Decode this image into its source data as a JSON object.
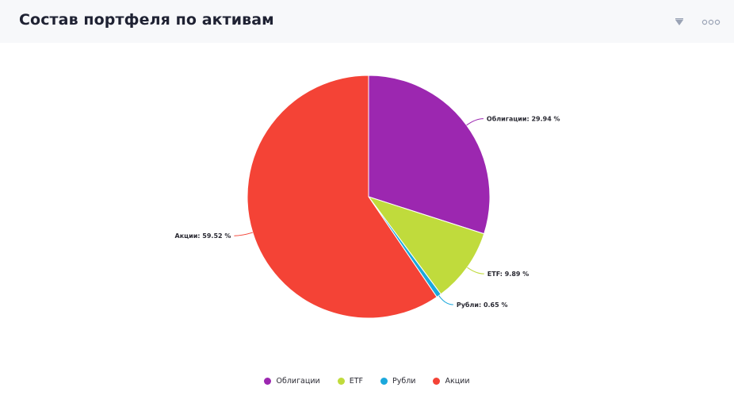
{
  "header": {
    "title": "Состав портфеля по активам",
    "filter_icon": "filter-icon",
    "more_icon": "more-dots-icon"
  },
  "colors": {
    "header_bg": "#f7f8fa",
    "icon": "#9aa3b5"
  },
  "chart_data": {
    "type": "pie",
    "title": "Состав портфеля по активам",
    "legend_position": "bottom",
    "slices": [
      {
        "name": "Облигации",
        "value": 29.94,
        "label": "Облигации: 29.94 %",
        "color": "#9c27b0"
      },
      {
        "name": "ETF",
        "value": 9.89,
        "label": "ETF: 9.89 %",
        "color": "#c0db3c"
      },
      {
        "name": "Рубли",
        "value": 0.65,
        "label": "Рубли: 0.65 %",
        "color": "#1ba8dc"
      },
      {
        "name": "Акции",
        "value": 59.52,
        "label": "Акции: 59.52 %",
        "color": "#f44336"
      }
    ]
  }
}
